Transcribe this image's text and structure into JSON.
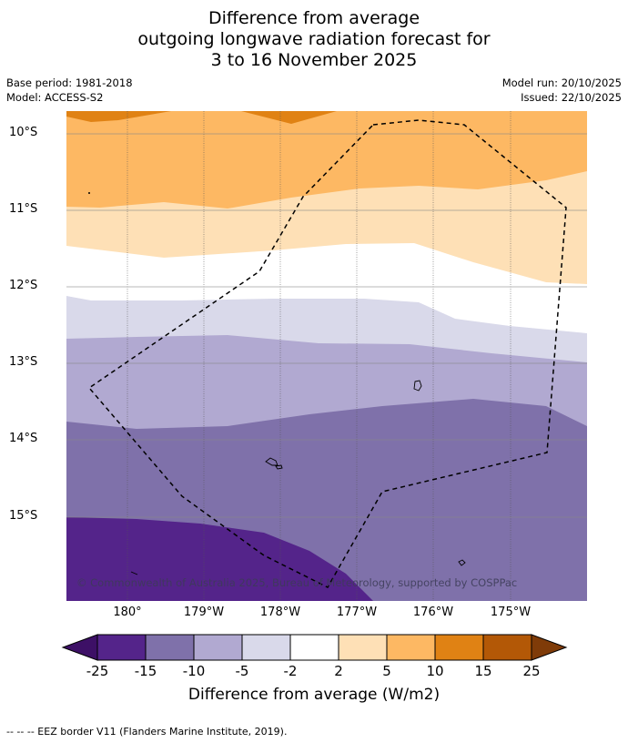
{
  "title": {
    "line1": "Difference from average",
    "line2": "outgoing longwave radiation forecast for",
    "line3": "3 to 16 November 2025"
  },
  "meta": {
    "base_period": "Base period: 1981-2018",
    "model": "Model: ACCESS-S2",
    "model_run": "Model run: 20/10/2025",
    "issued": "Issued: 22/10/2025"
  },
  "map": {
    "lat_labels": [
      "10°S",
      "11°S",
      "12°S",
      "13°S",
      "14°S",
      "15°S"
    ],
    "lon_labels": [
      "180°",
      "179°W",
      "178°W",
      "177°W",
      "176°W",
      "175°W"
    ],
    "copyright": "© Commonwealth of Australia 2025, Bureau of Meteorology, supported by COSPPac"
  },
  "colorbar": {
    "labels": [
      "-25",
      "-15",
      "-10",
      "-5",
      "-2",
      "2",
      "5",
      "10",
      "15",
      "25"
    ],
    "colors": [
      "#3d1066",
      "#54248a",
      "#7f71aa",
      "#b1a9d1",
      "#d9d9ea",
      "#ffffff",
      "#fee0b6",
      "#fdb863",
      "#e08214",
      "#b35806",
      "#7f3b08"
    ],
    "title": "Difference from average (W/m2)"
  },
  "footnote": "--  --  -- EEZ border V11 (Flanders Marine Institute, 2019)."
}
